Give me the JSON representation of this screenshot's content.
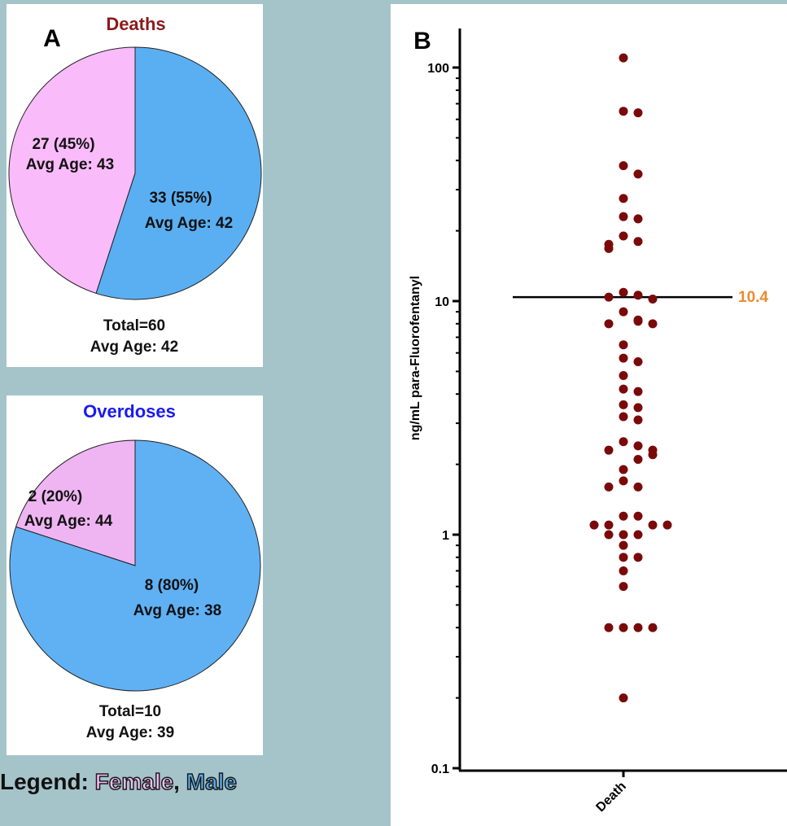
{
  "colors": {
    "female": "#f9bbf9",
    "female_overdoses": "#efb5f2",
    "male": "#5aaff2",
    "male_overdoses": "#5fb1f4",
    "deaths_title": "#8b1a1a",
    "overdoses_title": "#1a1af0",
    "dots": "#7a0a0a",
    "reference": "#ec8a2e"
  },
  "legend": {
    "prefix": "Legend: ",
    "female": "Female",
    "comma": ", ",
    "male": "Male"
  },
  "chart_data": [
    {
      "type": "pie",
      "panel_label": "A",
      "title": "Deaths",
      "slices": [
        {
          "name": "Female",
          "value": 27,
          "label": "27 (45%)",
          "sublabel": "Avg Age: 43",
          "color": "#f9bbf9"
        },
        {
          "name": "Male",
          "value": 33,
          "label": "33 (55%)",
          "sublabel": "Avg Age: 42",
          "color": "#5aaff2"
        }
      ],
      "total_label": "Total=60",
      "avg_label": "Avg Age: 42"
    },
    {
      "type": "pie",
      "title": "Overdoses",
      "slices": [
        {
          "name": "Female",
          "value": 2,
          "label": "2 (20%)",
          "sublabel": "Avg Age: 44",
          "color": "#efb5f2"
        },
        {
          "name": "Male",
          "value": 8,
          "label": "8 (80%)",
          "sublabel": "Avg Age: 38",
          "color": "#5fb1f4"
        }
      ],
      "total_label": "Total=10",
      "avg_label": "Avg Age: 39"
    },
    {
      "type": "scatter",
      "panel_label": "B",
      "ylabel": "ng/mL para-Fluorofentanyl",
      "yscale": "log",
      "ylim": [
        0.1,
        150
      ],
      "yticks": [
        {
          "value": 0.1,
          "label": "0.1"
        },
        {
          "value": 1,
          "label": "1"
        },
        {
          "value": 10,
          "label": "10"
        },
        {
          "value": 100,
          "label": "100"
        }
      ],
      "categories": [
        "Death"
      ],
      "reference_line": {
        "value": 10.4,
        "label": "10.4"
      },
      "points": [
        110,
        65,
        64,
        38,
        35,
        27.5,
        23,
        22.5,
        19,
        18,
        17.5,
        16.8,
        10.9,
        10.6,
        10.4,
        10.2,
        9,
        8.3,
        8.2,
        8,
        8,
        6.5,
        5.7,
        5.5,
        4.8,
        4.2,
        4.1,
        3.6,
        3.5,
        3.2,
        3.1,
        2.5,
        2.4,
        2.3,
        2.3,
        2.2,
        2.1,
        1.9,
        1.7,
        1.6,
        1.6,
        1.2,
        1.2,
        1.1,
        1.1,
        1.1,
        1.1,
        1.0,
        1.0,
        1.0,
        0.9,
        0.8,
        0.8,
        0.7,
        0.6,
        0.4,
        0.4,
        0.4,
        0.4,
        0.2
      ]
    }
  ]
}
